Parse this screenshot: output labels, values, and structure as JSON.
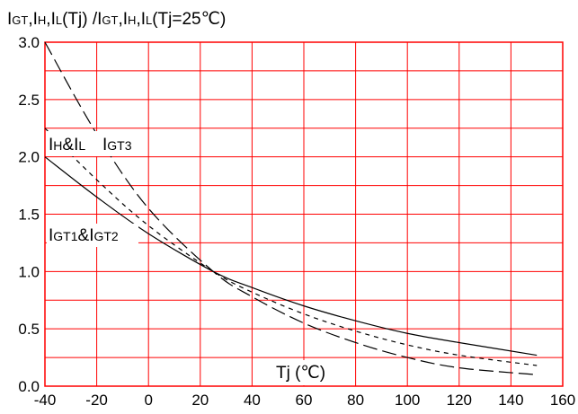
{
  "chart_data": {
    "type": "line",
    "title": {
      "p1": "I",
      "p2": "GT",
      "p3": ",I",
      "p4": "H",
      "p5": ",I",
      "p6": "L",
      "p7": "(Tj) /I",
      "p8": "GT",
      "p9": ",I",
      "p10": "H",
      "p11": ",I",
      "p12": "L",
      "p13": "(Tj=25℃)"
    },
    "xlabel": "Tj (℃)",
    "xlim": [
      -40,
      160
    ],
    "ylim": [
      0,
      3.0
    ],
    "x_ticks": [
      "-40",
      "-20",
      "0",
      "20",
      "40",
      "60",
      "80",
      "100",
      "120",
      "140",
      "160"
    ],
    "y_ticks": [
      "0.0",
      "0.5",
      "1.0",
      "1.5",
      "2.0",
      "2.5",
      "3.0"
    ],
    "grid": true,
    "grid_color": "#ff0000",
    "series": [
      {
        "name": "IGT1&IGT2",
        "style": "solid",
        "x": [
          -40,
          -20,
          0,
          25,
          40,
          60,
          80,
          100,
          120,
          150
        ],
        "y": [
          2.0,
          1.65,
          1.33,
          1.0,
          0.86,
          0.7,
          0.57,
          0.46,
          0.38,
          0.27
        ]
      },
      {
        "name": "IH&IL",
        "style": "short-dash",
        "x": [
          -40,
          -20,
          0,
          25,
          40,
          60,
          80,
          100,
          120,
          150
        ],
        "y": [
          2.25,
          1.8,
          1.4,
          1.0,
          0.82,
          0.63,
          0.48,
          0.36,
          0.27,
          0.18
        ]
      },
      {
        "name": "IGT3",
        "style": "long-dash",
        "x": [
          -40,
          -20,
          0,
          25,
          40,
          60,
          80,
          100,
          120,
          150
        ],
        "y": [
          3.0,
          2.2,
          1.55,
          1.0,
          0.78,
          0.55,
          0.38,
          0.25,
          0.16,
          0.1
        ]
      }
    ],
    "labels": {
      "igt12": {
        "a": "I",
        "b": "GT1",
        "c": "&I",
        "d": "GT2"
      },
      "ihl": {
        "a": "I",
        "b": "H",
        "c": "&I",
        "d": "L"
      },
      "igt3": {
        "a": "I",
        "b": "GT3"
      }
    }
  }
}
